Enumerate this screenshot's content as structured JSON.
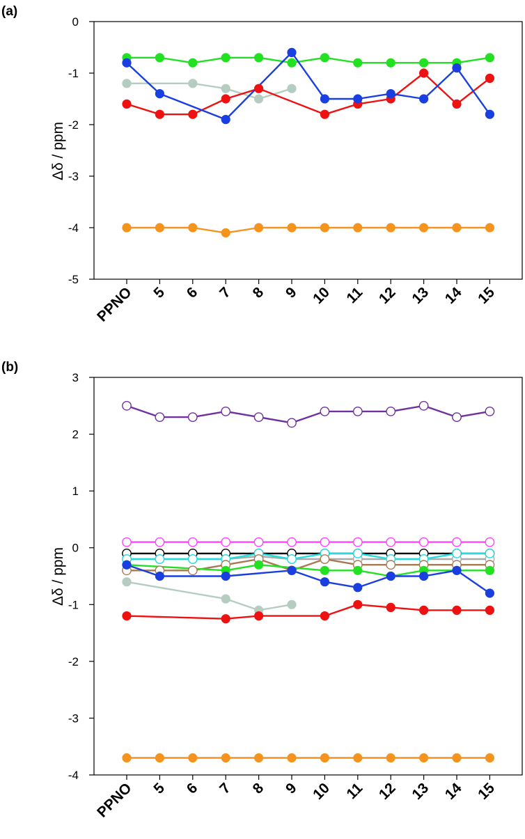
{
  "chart_data": [
    {
      "panel_label": "(a)",
      "type": "line",
      "ylabel": "Δδ / ppm",
      "xlabel": "",
      "categories": [
        "PPNO",
        "5",
        "6",
        "7",
        "8",
        "9",
        "10",
        "11",
        "12",
        "13",
        "14",
        "15"
      ],
      "ylim": [
        -5,
        0
      ],
      "yticks": [
        "0",
        "-1",
        "-2",
        "-3",
        "-4",
        "-5"
      ],
      "grid": false,
      "series": [
        {
          "color": "#22e022",
          "marker": "filled",
          "values": [
            -0.7,
            -0.7,
            -0.8,
            -0.7,
            -0.7,
            -0.8,
            -0.7,
            -0.8,
            -0.8,
            -0.8,
            -0.8,
            -0.7
          ]
        },
        {
          "color": "#b4cdc0",
          "marker": "filled",
          "values": [
            -1.2,
            null,
            -1.2,
            -1.3,
            -1.5,
            -1.3,
            null,
            null,
            null,
            null,
            null,
            null
          ]
        },
        {
          "color": "#ee1111",
          "marker": "filled",
          "values": [
            -1.6,
            -1.8,
            -1.8,
            -1.5,
            -1.3,
            null,
            -1.8,
            -1.6,
            -1.5,
            -1.0,
            -1.6,
            -1.1
          ]
        },
        {
          "color": "#1a3fe0",
          "marker": "filled",
          "values": [
            -0.8,
            -1.4,
            null,
            -1.9,
            null,
            -0.6,
            -1.5,
            -1.5,
            -1.4,
            -1.5,
            -0.9,
            -1.8
          ]
        },
        {
          "color": "#f4931e",
          "marker": "filled",
          "values": [
            -4.0,
            -4.0,
            -4.0,
            -4.1,
            -4.0,
            -4.0,
            -4.0,
            -4.0,
            -4.0,
            -4.0,
            -4.0,
            -4.0
          ]
        }
      ]
    },
    {
      "panel_label": "(b)",
      "type": "line",
      "ylabel": "Δδ / ppm",
      "xlabel": "",
      "categories": [
        "PPNO",
        "5",
        "6",
        "7",
        "8",
        "9",
        "10",
        "11",
        "12",
        "13",
        "14",
        "15"
      ],
      "ylim": [
        -4,
        3
      ],
      "yticks": [
        "3",
        "2",
        "1",
        "0",
        "-1",
        "-2",
        "-3",
        "-4"
      ],
      "grid": false,
      "series": [
        {
          "color": "#7030a0",
          "marker": "open",
          "values": [
            2.5,
            2.3,
            2.3,
            2.4,
            2.3,
            2.2,
            2.4,
            2.4,
            2.4,
            2.5,
            2.3,
            2.4
          ]
        },
        {
          "color": "#ff44ff",
          "marker": "open",
          "values": [
            0.1,
            0.1,
            0.1,
            0.1,
            0.1,
            0.1,
            0.1,
            0.1,
            0.1,
            0.1,
            0.1,
            0.1
          ]
        },
        {
          "color": "#000000",
          "marker": "open",
          "values": [
            -0.1,
            -0.1,
            -0.1,
            -0.1,
            -0.1,
            -0.1,
            -0.1,
            -0.1,
            -0.1,
            -0.1,
            -0.1,
            -0.1
          ]
        },
        {
          "color": "#aaaaaa",
          "marker": "open",
          "values": [
            -0.2,
            -0.2,
            -0.2,
            -0.2,
            -0.15,
            -0.2,
            -0.2,
            -0.2,
            -0.2,
            -0.2,
            -0.2,
            -0.2
          ]
        },
        {
          "color": "#22dddd",
          "marker": "open",
          "values": [
            -0.2,
            -0.2,
            -0.2,
            -0.2,
            -0.1,
            -0.2,
            -0.1,
            -0.1,
            -0.2,
            -0.2,
            -0.1,
            -0.1
          ]
        },
        {
          "color": "#a87850",
          "marker": "open",
          "values": [
            -0.4,
            -0.4,
            -0.4,
            -0.3,
            -0.2,
            -0.4,
            -0.2,
            -0.3,
            -0.3,
            -0.3,
            -0.3,
            -0.3
          ]
        },
        {
          "color": "#22e022",
          "marker": "filled",
          "values": [
            -0.3,
            null,
            null,
            -0.4,
            -0.3,
            null,
            -0.4,
            -0.4,
            -0.5,
            -0.4,
            -0.4,
            -0.4
          ]
        },
        {
          "color": "#1a3fe0",
          "marker": "filled",
          "values": [
            -0.3,
            -0.5,
            null,
            -0.5,
            null,
            -0.4,
            -0.6,
            -0.7,
            -0.5,
            -0.5,
            -0.4,
            -0.8
          ]
        },
        {
          "color": "#b4cdc0",
          "marker": "filled",
          "values": [
            -0.6,
            null,
            null,
            -0.9,
            -1.1,
            -1.0,
            null,
            null,
            null,
            null,
            null,
            null
          ]
        },
        {
          "color": "#ee1111",
          "marker": "filled",
          "values": [
            -1.2,
            null,
            null,
            -1.25,
            -1.2,
            null,
            -1.2,
            -1.0,
            -1.05,
            -1.1,
            -1.1,
            -1.1
          ]
        },
        {
          "color": "#f4931e",
          "marker": "filled",
          "values": [
            -3.7,
            -3.7,
            -3.7,
            -3.7,
            -3.7,
            -3.7,
            -3.7,
            -3.7,
            -3.7,
            -3.7,
            -3.7,
            -3.7
          ]
        }
      ]
    }
  ]
}
